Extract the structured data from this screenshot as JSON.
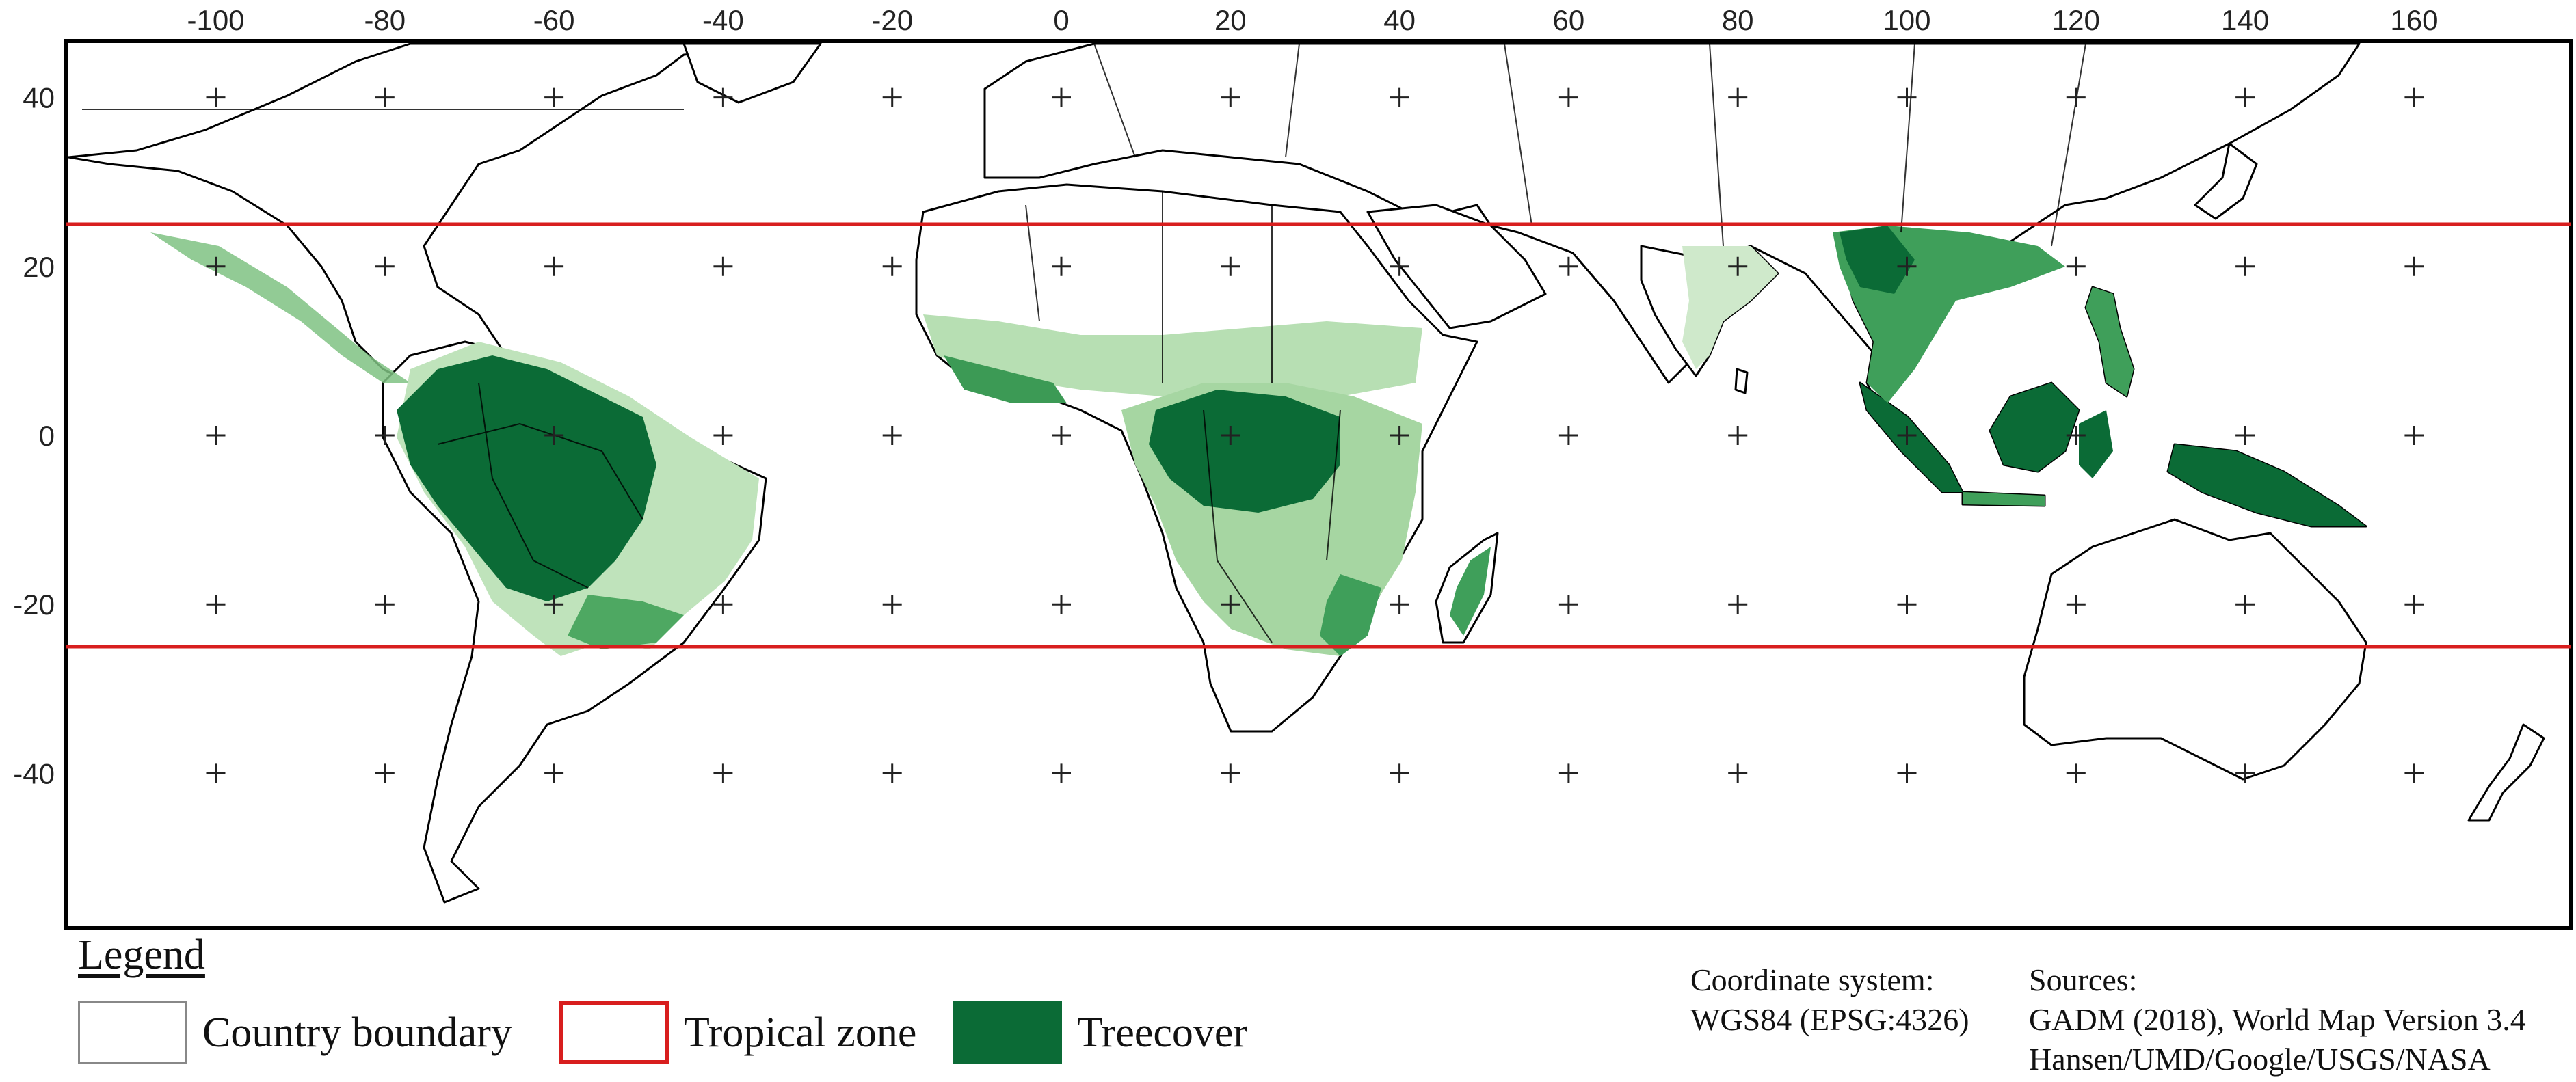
{
  "map": {
    "x_ticks": [
      "-100",
      "-80",
      "-60",
      "-40",
      "-20",
      "0",
      "20",
      "40",
      "60",
      "80",
      "100",
      "120",
      "140",
      "160"
    ],
    "y_ticks": [
      "40",
      "20",
      "0",
      "-20",
      "-40"
    ],
    "x_tick_values": [
      -100,
      -80,
      -60,
      -40,
      -20,
      0,
      20,
      40,
      60,
      80,
      100,
      120,
      140,
      160
    ],
    "y_tick_values": [
      40,
      20,
      0,
      -20,
      -40
    ],
    "tropical_zone_latitudes": [
      25,
      -25
    ],
    "colors": {
      "tropical_line": "#d81e1e",
      "treecover_dark": "#0b6b36",
      "treecover_mid": "#3f9f5a",
      "treecover_light": "#a8d9a8",
      "country_boundary": "#000000"
    }
  },
  "legend": {
    "title": "Legend",
    "items": [
      {
        "label": "Country boundary",
        "icon": "country-boundary-swatch"
      },
      {
        "label": "Tropical zone",
        "icon": "tropical-zone-swatch"
      },
      {
        "label": "Treecover",
        "icon": "treecover-swatch"
      }
    ]
  },
  "coordinate_system": {
    "heading": "Coordinate system:",
    "value": "WGS84 (EPSG:4326)"
  },
  "sources": {
    "heading": "Sources:",
    "line1": "GADM (2018), World Map Version 3.4",
    "line2": "Hansen/UMD/Google/USGS/NASA"
  }
}
